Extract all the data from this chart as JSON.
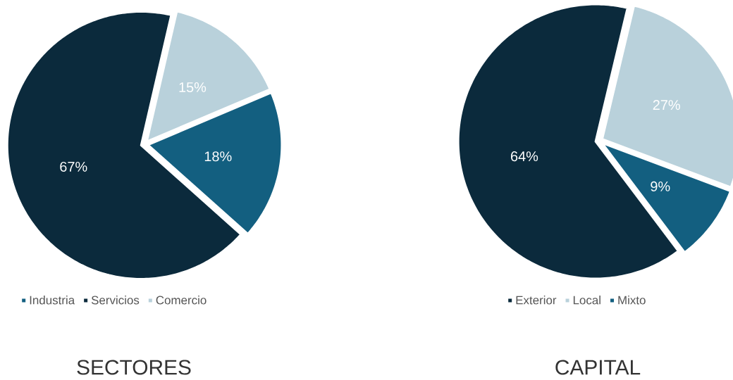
{
  "chart_data": [
    {
      "type": "pie",
      "title": "SECTORES",
      "categories": [
        "Industria",
        "Servicios",
        "Comercio"
      ],
      "values": [
        18,
        67,
        15
      ],
      "colors": [
        "#135f80",
        "#0b2a3c",
        "#b9d1db"
      ],
      "value_labels": [
        "18%",
        "67%",
        "15%"
      ],
      "legend": "bottom"
    },
    {
      "type": "pie",
      "title": "CAPITAL",
      "categories": [
        "Exterior",
        "Local",
        "Mixto"
      ],
      "values": [
        64,
        27,
        9
      ],
      "colors": [
        "#0b2a3c",
        "#b9d1db",
        "#135f80"
      ],
      "value_labels": [
        "64%",
        "27%",
        "9%"
      ],
      "legend": "bottom"
    }
  ]
}
